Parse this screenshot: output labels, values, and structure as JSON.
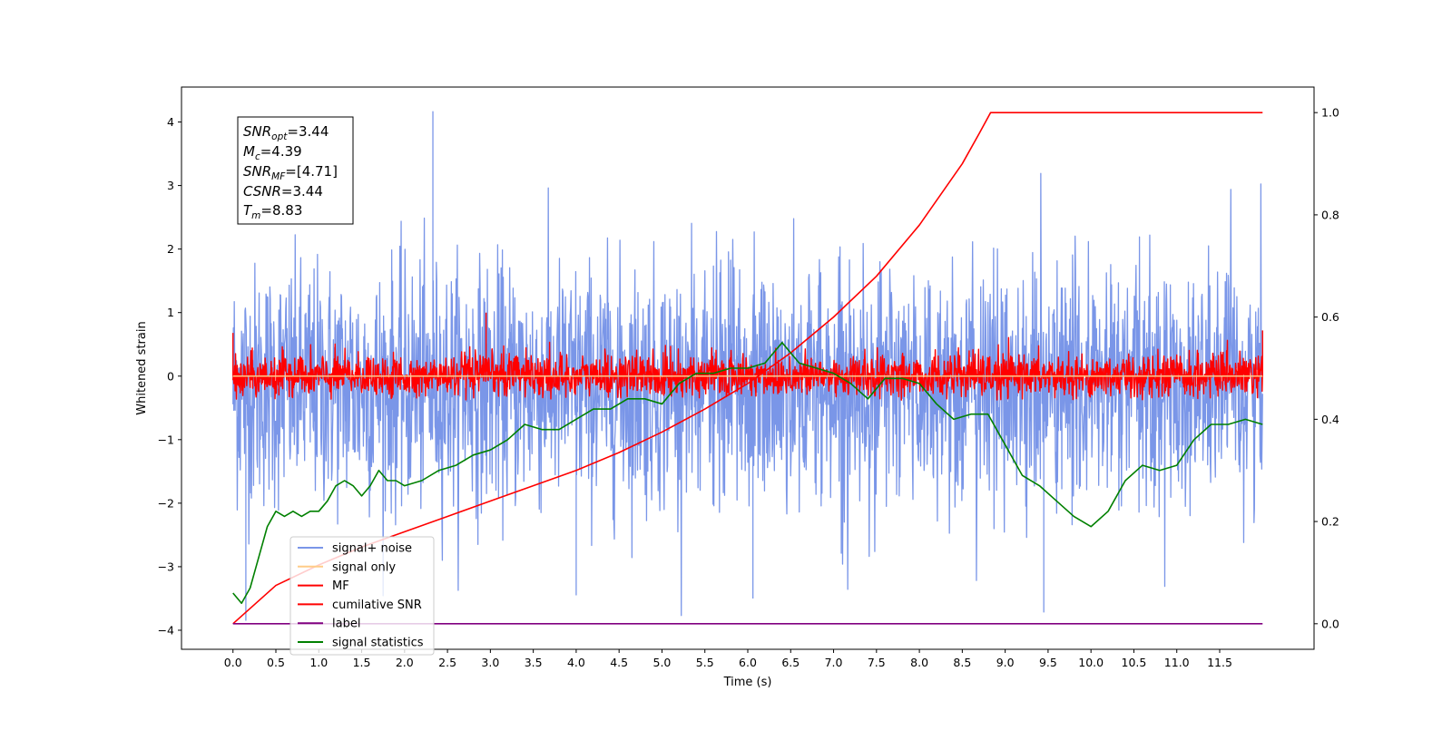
{
  "chart_data": {
    "type": "line",
    "title": "",
    "xlabel": "Time (s)",
    "ylabel": "Whitened strain",
    "y2label": "",
    "xlim": [
      -0.6,
      12.6
    ],
    "ylim": [
      -4.3,
      4.55
    ],
    "y2lim": [
      -0.05,
      1.05
    ],
    "xticks": [
      0.0,
      0.5,
      1.0,
      1.5,
      2.0,
      2.5,
      3.0,
      3.5,
      4.0,
      4.5,
      5.0,
      5.5,
      6.0,
      6.5,
      7.0,
      7.5,
      8.0,
      8.5,
      9.0,
      9.5,
      10.0,
      10.5,
      11.0,
      11.5
    ],
    "xtick_labels": [
      "0.0",
      "0.5",
      "1.0",
      "1.5",
      "2.0",
      "2.5",
      "3.0",
      "3.5",
      "4.0",
      "4.5",
      "5.0",
      "5.5",
      "6.0",
      "6.5",
      "7.0",
      "7.5",
      "8.0",
      "8.5",
      "9.0",
      "9.5",
      "10.0",
      "10.5",
      "11.0",
      "11.5"
    ],
    "yticks": [
      -4,
      -3,
      -2,
      -1,
      0,
      1,
      2,
      3,
      4
    ],
    "ytick_labels": [
      "−4",
      "−3",
      "−2",
      "−1",
      "0",
      "1",
      "2",
      "3",
      "4"
    ],
    "y2ticks": [
      0.0,
      0.2,
      0.4,
      0.6,
      0.8,
      1.0
    ],
    "y2tick_labels": [
      "0.0",
      "0.2",
      "0.4",
      "0.6",
      "0.8",
      "1.0"
    ],
    "grid": false,
    "legend_position": "lower-left",
    "annotation": {
      "lines": [
        {
          "sym": "SNR",
          "sub": "opt",
          "val": "=3.44"
        },
        {
          "sym": "M",
          "sub": "c",
          "val": "=4.39"
        },
        {
          "sym": "SNR",
          "sub": "MF",
          "val": "=[4.71]"
        },
        {
          "sym": "CSNR",
          "sub": "",
          "val": "=3.44"
        },
        {
          "sym": "T",
          "sub": "m",
          "val": "=8.83"
        }
      ]
    },
    "series": [
      {
        "name": "signal+ noise",
        "color": "#7a96e8",
        "axis": "left",
        "kind": "noise",
        "x_range": [
          0.0,
          12.0
        ],
        "center": -0.15,
        "spread": 0.95,
        "ymin": -3.85,
        "ymax": 4.17
      },
      {
        "name": "signal only",
        "color": "#ffcc88",
        "axis": "left",
        "kind": "flat",
        "x": [
          0.0,
          12.0
        ],
        "y": [
          0.0,
          0.0
        ]
      },
      {
        "name": "MF",
        "color": "#ff0000",
        "axis": "left",
        "kind": "noise",
        "x_range": [
          0.0,
          12.0
        ],
        "center": 0.0,
        "spread": 0.17,
        "ymin": -0.38,
        "ymax": 1.0
      },
      {
        "name": "cumilative SNR",
        "color": "#ff0000",
        "axis": "right",
        "x": [
          0.0,
          0.5,
          1.0,
          1.5,
          2.0,
          2.5,
          3.0,
          3.5,
          4.0,
          4.5,
          5.0,
          5.5,
          6.0,
          6.5,
          7.0,
          7.5,
          8.0,
          8.5,
          8.7,
          8.83,
          12.0
        ],
        "y": [
          0.0,
          0.075,
          0.115,
          0.15,
          0.18,
          0.21,
          0.24,
          0.27,
          0.3,
          0.335,
          0.375,
          0.42,
          0.47,
          0.53,
          0.6,
          0.68,
          0.78,
          0.9,
          0.96,
          1.0,
          1.0
        ]
      },
      {
        "name": "label",
        "color": "#800080",
        "axis": "right",
        "x": [
          0.0,
          12.0
        ],
        "y": [
          0.0,
          0.0
        ]
      },
      {
        "name": "signal statistics",
        "color": "#008000",
        "axis": "right",
        "x": [
          0.0,
          0.1,
          0.2,
          0.3,
          0.4,
          0.5,
          0.6,
          0.7,
          0.8,
          0.9,
          1.0,
          1.1,
          1.2,
          1.3,
          1.4,
          1.5,
          1.6,
          1.7,
          1.8,
          1.9,
          2.0,
          2.2,
          2.4,
          2.6,
          2.8,
          3.0,
          3.2,
          3.4,
          3.6,
          3.8,
          4.0,
          4.2,
          4.4,
          4.6,
          4.8,
          5.0,
          5.2,
          5.4,
          5.6,
          5.8,
          6.0,
          6.2,
          6.4,
          6.6,
          6.8,
          7.0,
          7.2,
          7.4,
          7.6,
          7.8,
          8.0,
          8.2,
          8.4,
          8.6,
          8.8,
          9.0,
          9.2,
          9.4,
          9.6,
          9.8,
          10.0,
          10.2,
          10.4,
          10.6,
          10.8,
          11.0,
          11.2,
          11.4,
          11.6,
          11.8,
          12.0
        ],
        "y": [
          0.06,
          0.04,
          0.07,
          0.13,
          0.19,
          0.22,
          0.21,
          0.22,
          0.21,
          0.22,
          0.22,
          0.24,
          0.27,
          0.28,
          0.27,
          0.25,
          0.27,
          0.3,
          0.28,
          0.28,
          0.27,
          0.28,
          0.3,
          0.31,
          0.33,
          0.34,
          0.36,
          0.39,
          0.38,
          0.38,
          0.4,
          0.42,
          0.42,
          0.44,
          0.44,
          0.43,
          0.47,
          0.49,
          0.49,
          0.5,
          0.5,
          0.51,
          0.55,
          0.51,
          0.5,
          0.49,
          0.47,
          0.44,
          0.48,
          0.48,
          0.47,
          0.43,
          0.4,
          0.41,
          0.41,
          0.35,
          0.29,
          0.27,
          0.24,
          0.21,
          0.19,
          0.22,
          0.28,
          0.31,
          0.3,
          0.31,
          0.36,
          0.39,
          0.39,
          0.4,
          0.39
        ]
      }
    ]
  }
}
